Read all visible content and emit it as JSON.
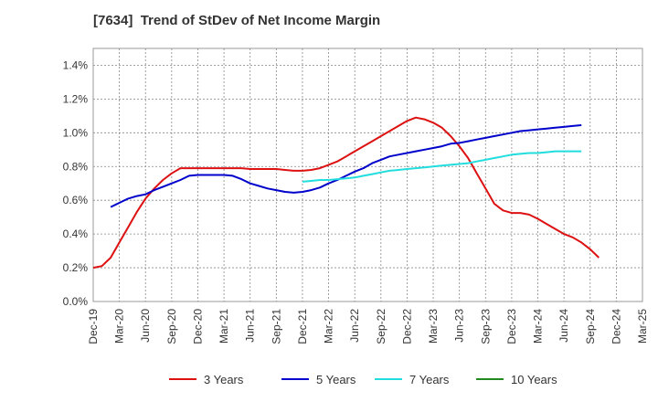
{
  "chart_data": {
    "type": "line",
    "title": "[7634]  Trend of StDev of Net Income Margin",
    "xlabel": "",
    "ylabel": "",
    "x_ticks": [
      "Dec-19",
      "Mar-20",
      "Jun-20",
      "Sep-20",
      "Dec-20",
      "Mar-21",
      "Jun-21",
      "Sep-21",
      "Dec-21",
      "Mar-22",
      "Jun-22",
      "Sep-22",
      "Dec-22",
      "Mar-23",
      "Jun-23",
      "Sep-23",
      "Dec-23",
      "Mar-24",
      "Jun-24",
      "Sep-24",
      "Dec-24",
      "Mar-25"
    ],
    "y_ticks": [
      "0.0%",
      "0.2%",
      "0.4%",
      "0.6%",
      "0.8%",
      "1.0%",
      "1.2%",
      "1.4%"
    ],
    "ylim": [
      0,
      1.5
    ],
    "grid": true,
    "legend_position": "bottom",
    "series": [
      {
        "name": "3 Years",
        "color": "#dd1111",
        "values": [
          0.2,
          0.21,
          0.26,
          0.35,
          0.44,
          0.53,
          0.61,
          0.67,
          0.72,
          0.76,
          0.79,
          0.79,
          0.79,
          0.79,
          0.79,
          0.79,
          0.79,
          0.79,
          0.785,
          0.785,
          0.785,
          0.785,
          0.78,
          0.775,
          0.775,
          0.78,
          0.79,
          0.81,
          0.83,
          0.86,
          0.89,
          0.92,
          0.95,
          0.98,
          1.01,
          1.04,
          1.07,
          1.09,
          1.08,
          1.06,
          1.03,
          0.98,
          0.92,
          0.85,
          0.76,
          0.67,
          0.58,
          0.54,
          0.525,
          0.525,
          0.515,
          0.49,
          0.46,
          0.43,
          0.4,
          0.38,
          0.35,
          0.31,
          0.26
        ]
      },
      {
        "name": "5 Years",
        "color": "#0000cc",
        "values": [
          null,
          null,
          0.56,
          0.585,
          0.61,
          0.625,
          0.635,
          0.66,
          0.68,
          0.7,
          0.72,
          0.745,
          0.75,
          0.75,
          0.75,
          0.75,
          0.745,
          0.725,
          0.7,
          0.685,
          0.67,
          0.66,
          0.65,
          0.645,
          0.65,
          0.66,
          0.675,
          0.7,
          0.72,
          0.745,
          0.77,
          0.79,
          0.82,
          0.84,
          0.86,
          0.87,
          0.88,
          0.89,
          0.9,
          0.91,
          0.92,
          0.935,
          0.94,
          0.95,
          0.96,
          0.97,
          0.98,
          0.99,
          1.0,
          1.01,
          1.015,
          1.02,
          1.025,
          1.03,
          1.035,
          1.04,
          1.045
        ]
      },
      {
        "name": "7 Years",
        "color": "#22dddd",
        "values": [
          null,
          null,
          null,
          null,
          null,
          null,
          null,
          null,
          null,
          null,
          null,
          null,
          null,
          null,
          null,
          null,
          null,
          null,
          null,
          null,
          null,
          null,
          null,
          null,
          0.71,
          0.715,
          0.72,
          0.72,
          0.725,
          0.73,
          0.735,
          0.745,
          0.755,
          0.765,
          0.775,
          0.78,
          0.785,
          0.79,
          0.795,
          0.8,
          0.805,
          0.81,
          0.815,
          0.82,
          0.83,
          0.84,
          0.85,
          0.86,
          0.87,
          0.875,
          0.88,
          0.88,
          0.885,
          0.89,
          0.89,
          0.89,
          0.89
        ]
      },
      {
        "name": "10 Years",
        "color": "#228822",
        "values": []
      }
    ]
  }
}
